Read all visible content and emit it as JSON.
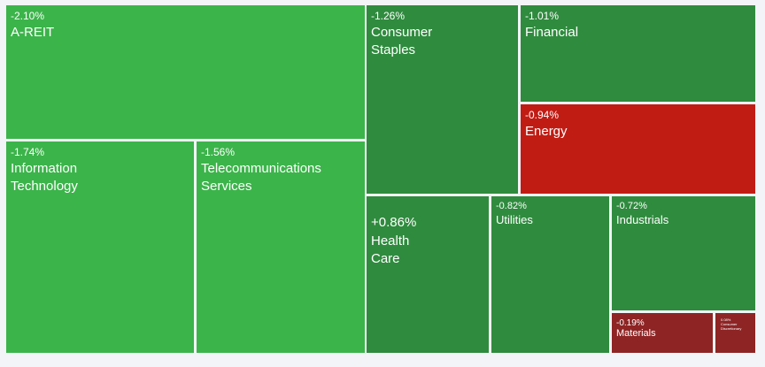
{
  "treemap": {
    "tiles": [
      {
        "id": "a-reit",
        "change": "-2.10%",
        "name": "A-REIT",
        "color": "#3bb44a"
      },
      {
        "id": "information-technology",
        "change": "-1.74%",
        "name": "Information\nTechnology",
        "color": "#3bb44a"
      },
      {
        "id": "telecommunications-services",
        "change": "-1.56%",
        "name": "Telecommunications\nServices",
        "color": "#3bb44a"
      },
      {
        "id": "consumer-staples",
        "change": "-1.26%",
        "name": "Consumer\nStaples",
        "color": "#2f8b3e"
      },
      {
        "id": "financial",
        "change": "-1.01%",
        "name": "Financial",
        "color": "#2f8b3e"
      },
      {
        "id": "energy",
        "change": "-0.94%",
        "name": "Energy",
        "color": "#c11c14"
      },
      {
        "id": "health-care",
        "change": "+0.86%",
        "name": "Health\nCare",
        "color": "#2f8b3e"
      },
      {
        "id": "utilities",
        "change": "-0.82%",
        "name": "Utilities",
        "color": "#2f8b3e"
      },
      {
        "id": "industrials",
        "change": "-0.72%",
        "name": "Industrials",
        "color": "#2f8b3e"
      },
      {
        "id": "materials",
        "change": "-0.19%",
        "name": "Materials",
        "color": "#8e2424"
      },
      {
        "id": "consumer-discretionary",
        "change": "0.08%",
        "name": "Consumer\nDiscretionary",
        "color": "#8e2424"
      }
    ]
  }
}
